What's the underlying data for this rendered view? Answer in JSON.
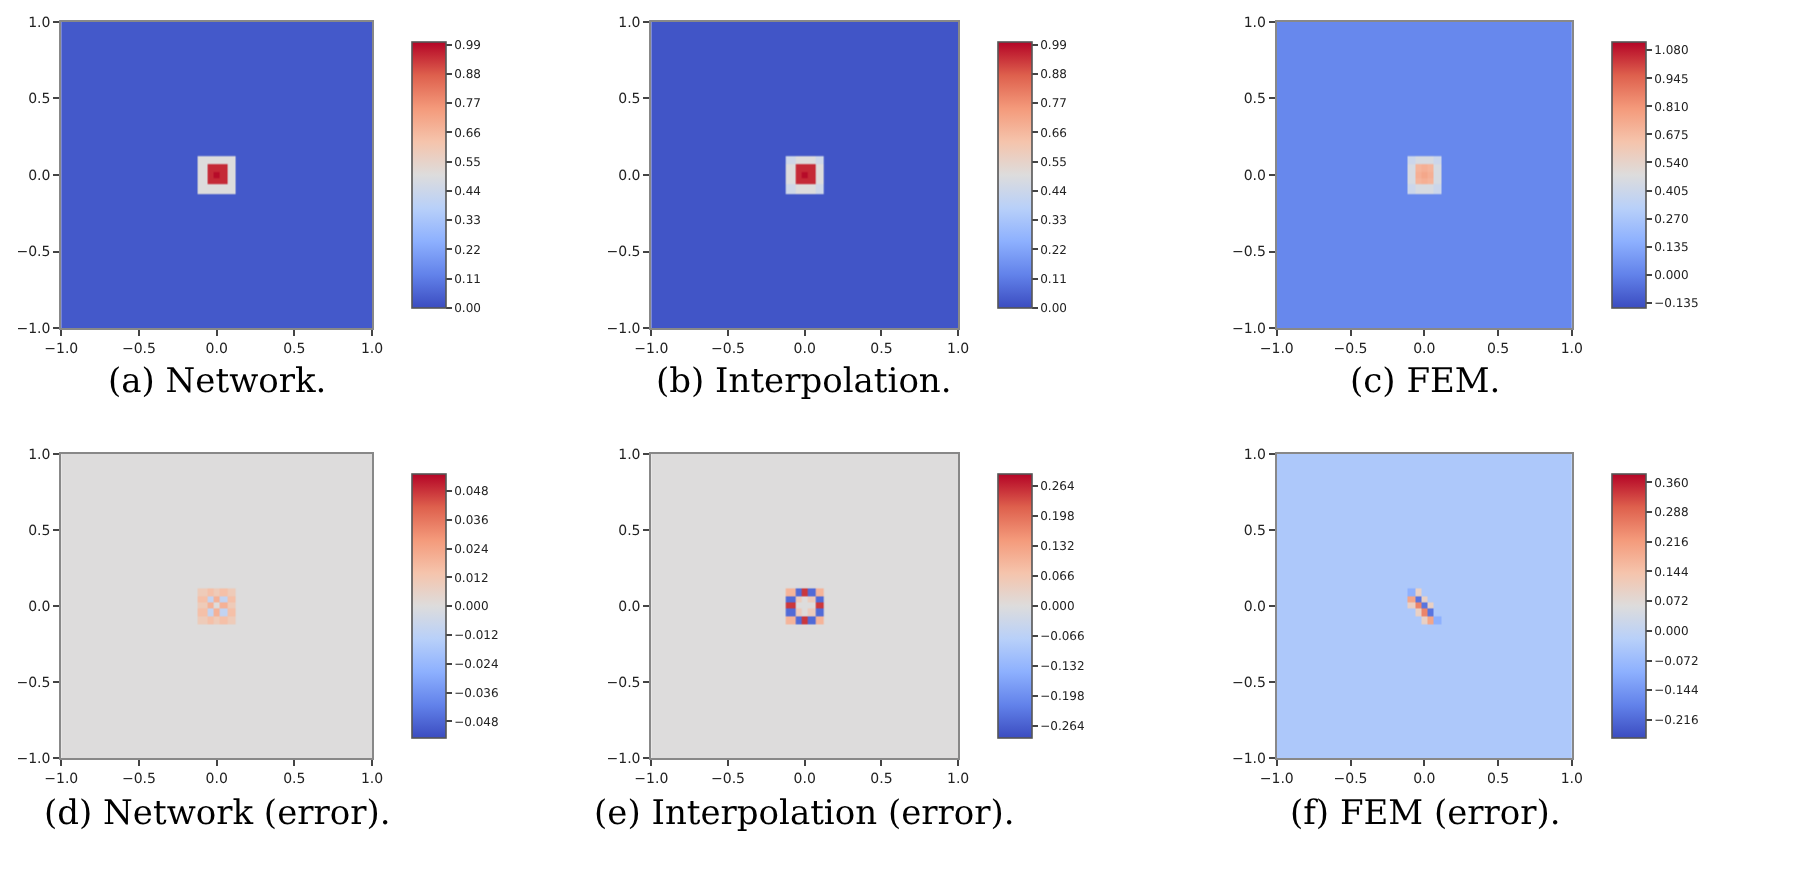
{
  "chart_data": [
    {
      "type": "heatmap",
      "title": "(a) Network.",
      "x": [
        -0.9,
        -0.6,
        -0.3,
        -0.15,
        -0.09,
        -0.04,
        0,
        0.04,
        0.09,
        0.15,
        0.3,
        0.6,
        0.9
      ],
      "y": [
        -0.9,
        -0.6,
        -0.3,
        -0.15,
        -0.09,
        -0.04,
        0,
        0.04,
        0.09,
        0.15,
        0.3,
        0.6,
        0.9
      ],
      "cells": [
        [
          0.03,
          0.03,
          0.03,
          0.03,
          0.03,
          0.03,
          0.03,
          0.03,
          0.03,
          0.03,
          0.03,
          0.03,
          0.03
        ],
        [
          0.03,
          0.03,
          0.03,
          0.03,
          0.03,
          0.03,
          0.03,
          0.03,
          0.03,
          0.03,
          0.03,
          0.03,
          0.03
        ],
        [
          0.03,
          0.03,
          0.03,
          0.03,
          0.03,
          0.03,
          0.03,
          0.03,
          0.03,
          0.03,
          0.03,
          0.03,
          0.03
        ],
        [
          0.03,
          0.03,
          0.03,
          0.03,
          0.03,
          0.03,
          0.03,
          0.03,
          0.03,
          0.03,
          0.03,
          0.03,
          0.03
        ],
        [
          0.03,
          0.03,
          0.03,
          0.03,
          0.5,
          0.5,
          0.5,
          0.5,
          0.5,
          0.03,
          0.03,
          0.03,
          0.03
        ],
        [
          0.03,
          0.03,
          0.03,
          0.03,
          0.5,
          0.95,
          0.95,
          0.95,
          0.5,
          0.03,
          0.03,
          0.03,
          0.03
        ],
        [
          0.03,
          0.03,
          0.03,
          0.03,
          0.5,
          0.95,
          0.99,
          0.95,
          0.5,
          0.03,
          0.03,
          0.03,
          0.03
        ],
        [
          0.03,
          0.03,
          0.03,
          0.03,
          0.5,
          0.95,
          0.95,
          0.95,
          0.5,
          0.03,
          0.03,
          0.03,
          0.03
        ],
        [
          0.03,
          0.03,
          0.03,
          0.03,
          0.5,
          0.5,
          0.5,
          0.5,
          0.5,
          0.03,
          0.03,
          0.03,
          0.03
        ],
        [
          0.03,
          0.03,
          0.03,
          0.03,
          0.03,
          0.03,
          0.03,
          0.03,
          0.03,
          0.03,
          0.03,
          0.03,
          0.03
        ],
        [
          0.03,
          0.03,
          0.03,
          0.03,
          0.03,
          0.03,
          0.03,
          0.03,
          0.03,
          0.03,
          0.03,
          0.03,
          0.03
        ],
        [
          0.03,
          0.03,
          0.03,
          0.03,
          0.03,
          0.03,
          0.03,
          0.03,
          0.03,
          0.03,
          0.03,
          0.03,
          0.03
        ],
        [
          0.03,
          0.03,
          0.03,
          0.03,
          0.03,
          0.03,
          0.03,
          0.03,
          0.03,
          0.03,
          0.03,
          0.03,
          0.03
        ]
      ],
      "clim": [
        0,
        1.0
      ],
      "cticks": [
        {
          "value": 0,
          "label": "0.00"
        },
        {
          "value": 0.11,
          "label": "0.11"
        },
        {
          "value": 0.22,
          "label": "0.22"
        },
        {
          "value": 0.33,
          "label": "0.33"
        },
        {
          "value": 0.44,
          "label": "0.44"
        },
        {
          "value": 0.55,
          "label": "0.55"
        },
        {
          "value": 0.66,
          "label": "0.66"
        },
        {
          "value": 0.77,
          "label": "0.77"
        },
        {
          "value": 0.88,
          "label": "0.88"
        },
        {
          "value": 0.99,
          "label": "0.99"
        }
      ],
      "xlim": [
        -1,
        1
      ],
      "ylim": [
        -1,
        1
      ],
      "xticks": [
        {
          "value": -1,
          "label": "−1.0"
        },
        {
          "value": -0.5,
          "label": "−0.5"
        },
        {
          "value": 0,
          "label": "0.0"
        },
        {
          "value": 0.5,
          "label": "0.5"
        },
        {
          "value": 1,
          "label": "1.0"
        }
      ],
      "yticks": [
        {
          "value": -1,
          "label": "−1.0"
        },
        {
          "value": -0.5,
          "label": "−0.5"
        },
        {
          "value": 0,
          "label": "0.0"
        },
        {
          "value": 0.5,
          "label": "0.5"
        },
        {
          "value": 1,
          "label": "1.0"
        }
      ]
    },
    {
      "type": "heatmap",
      "title": "(b) Interpolation.",
      "x": [
        -0.9,
        -0.6,
        -0.3,
        -0.15,
        -0.09,
        -0.04,
        0,
        0.04,
        0.09,
        0.15,
        0.3,
        0.6,
        0.9
      ],
      "y": [
        -0.9,
        -0.6,
        -0.3,
        -0.15,
        -0.09,
        -0.04,
        0,
        0.04,
        0.09,
        0.15,
        0.3,
        0.6,
        0.9
      ],
      "cells": [
        [
          0.02,
          0.02,
          0.02,
          0.02,
          0.02,
          0.02,
          0.02,
          0.02,
          0.02,
          0.02,
          0.02,
          0.02,
          0.02
        ],
        [
          0.02,
          0.02,
          0.02,
          0.02,
          0.02,
          0.02,
          0.02,
          0.02,
          0.02,
          0.02,
          0.02,
          0.02,
          0.02
        ],
        [
          0.02,
          0.02,
          0.02,
          0.02,
          0.02,
          0.02,
          0.02,
          0.02,
          0.02,
          0.02,
          0.02,
          0.02,
          0.02
        ],
        [
          0.02,
          0.02,
          0.02,
          0.02,
          0.02,
          0.02,
          0.02,
          0.02,
          0.02,
          0.02,
          0.02,
          0.02,
          0.02
        ],
        [
          0.02,
          0.02,
          0.02,
          0.02,
          0.45,
          0.5,
          0.5,
          0.5,
          0.45,
          0.02,
          0.02,
          0.02,
          0.02
        ],
        [
          0.02,
          0.02,
          0.02,
          0.02,
          0.5,
          0.95,
          0.95,
          0.95,
          0.5,
          0.02,
          0.02,
          0.02,
          0.02
        ],
        [
          0.02,
          0.02,
          0.02,
          0.02,
          0.5,
          0.95,
          0.99,
          0.95,
          0.5,
          0.02,
          0.02,
          0.02,
          0.02
        ],
        [
          0.02,
          0.02,
          0.02,
          0.02,
          0.5,
          0.95,
          0.95,
          0.95,
          0.5,
          0.02,
          0.02,
          0.02,
          0.02
        ],
        [
          0.02,
          0.02,
          0.02,
          0.02,
          0.45,
          0.5,
          0.5,
          0.5,
          0.45,
          0.02,
          0.02,
          0.02,
          0.02
        ],
        [
          0.02,
          0.02,
          0.02,
          0.02,
          0.02,
          0.02,
          0.02,
          0.02,
          0.02,
          0.02,
          0.02,
          0.02,
          0.02
        ],
        [
          0.02,
          0.02,
          0.02,
          0.02,
          0.02,
          0.02,
          0.02,
          0.02,
          0.02,
          0.02,
          0.02,
          0.02,
          0.02
        ],
        [
          0.02,
          0.02,
          0.02,
          0.02,
          0.02,
          0.02,
          0.02,
          0.02,
          0.02,
          0.02,
          0.02,
          0.02,
          0.02
        ],
        [
          0.02,
          0.02,
          0.02,
          0.02,
          0.02,
          0.02,
          0.02,
          0.02,
          0.02,
          0.02,
          0.02,
          0.02,
          0.02
        ]
      ],
      "clim": [
        0,
        1.0
      ],
      "cticks": [
        {
          "value": 0,
          "label": "0.00"
        },
        {
          "value": 0.11,
          "label": "0.11"
        },
        {
          "value": 0.22,
          "label": "0.22"
        },
        {
          "value": 0.33,
          "label": "0.33"
        },
        {
          "value": 0.44,
          "label": "0.44"
        },
        {
          "value": 0.55,
          "label": "0.55"
        },
        {
          "value": 0.66,
          "label": "0.66"
        },
        {
          "value": 0.77,
          "label": "0.77"
        },
        {
          "value": 0.88,
          "label": "0.88"
        },
        {
          "value": 0.99,
          "label": "0.99"
        }
      ],
      "xlim": [
        -1,
        1
      ],
      "ylim": [
        -1,
        1
      ],
      "xticks": [
        {
          "value": -1,
          "label": "−1.0"
        },
        {
          "value": -0.5,
          "label": "−0.5"
        },
        {
          "value": 0,
          "label": "0.0"
        },
        {
          "value": 0.5,
          "label": "0.5"
        },
        {
          "value": 1,
          "label": "1.0"
        }
      ],
      "yticks": [
        {
          "value": -1,
          "label": "−1.0"
        },
        {
          "value": -0.5,
          "label": "−0.5"
        },
        {
          "value": 0,
          "label": "0.0"
        },
        {
          "value": 0.5,
          "label": "0.5"
        },
        {
          "value": 1,
          "label": "1.0"
        }
      ]
    },
    {
      "type": "heatmap",
      "title": "(c) FEM.",
      "x": [
        -0.9,
        -0.6,
        -0.3,
        -0.15,
        -0.09,
        -0.04,
        0,
        0.04,
        0.09,
        0.15,
        0.3,
        0.6,
        0.9
      ],
      "y": [
        -0.9,
        -0.6,
        -0.3,
        -0.15,
        -0.09,
        -0.04,
        0,
        0.04,
        0.09,
        0.15,
        0.3,
        0.6,
        0.9
      ],
      "cells": [
        [
          0.02,
          0.02,
          0.02,
          0.02,
          0.02,
          0.02,
          0.02,
          0.02,
          0.02,
          0.02,
          0.02,
          0.02,
          0.02
        ],
        [
          0.02,
          0.02,
          0.02,
          0.02,
          0.02,
          0.02,
          0.02,
          0.02,
          0.02,
          0.02,
          0.02,
          0.02,
          0.02
        ],
        [
          0.02,
          0.02,
          0.02,
          0.02,
          0.02,
          0.02,
          0.02,
          0.02,
          0.02,
          0.02,
          0.02,
          0.02,
          0.02
        ],
        [
          0.02,
          0.02,
          0.02,
          0.02,
          0.02,
          0.02,
          0.02,
          0.02,
          0.02,
          0.02,
          0.02,
          0.02,
          0.02
        ],
        [
          0.02,
          0.02,
          0.02,
          0.02,
          0.4,
          0.45,
          0.45,
          0.45,
          0.4,
          0.02,
          0.02,
          0.02,
          0.02
        ],
        [
          0.02,
          0.02,
          0.02,
          0.02,
          0.45,
          0.7,
          0.72,
          0.7,
          0.45,
          0.02,
          0.02,
          0.02,
          0.02
        ],
        [
          0.02,
          0.02,
          0.02,
          0.02,
          0.45,
          0.72,
          0.75,
          0.72,
          0.45,
          0.02,
          0.02,
          0.02,
          0.02
        ],
        [
          0.02,
          0.02,
          0.02,
          0.02,
          0.45,
          0.7,
          0.72,
          0.7,
          0.45,
          0.02,
          0.02,
          0.02,
          0.02
        ],
        [
          0.02,
          0.02,
          0.02,
          0.02,
          0.4,
          0.45,
          0.45,
          0.45,
          0.4,
          0.02,
          0.02,
          0.02,
          0.02
        ],
        [
          0.02,
          0.02,
          0.02,
          0.02,
          0.02,
          0.02,
          0.02,
          0.02,
          0.02,
          0.02,
          0.02,
          0.02,
          0.02
        ],
        [
          0.02,
          0.02,
          0.02,
          0.02,
          0.02,
          0.02,
          0.02,
          0.02,
          0.02,
          0.02,
          0.02,
          0.02,
          0.02
        ],
        [
          0.02,
          0.02,
          0.02,
          0.02,
          0.02,
          0.02,
          0.02,
          0.02,
          0.02,
          0.02,
          0.02,
          0.02,
          0.02
        ],
        [
          0.02,
          0.02,
          0.02,
          0.02,
          0.02,
          0.02,
          0.02,
          0.02,
          0.02,
          0.02,
          0.02,
          0.02,
          0.02
        ]
      ],
      "clim": [
        -0.16,
        1.12
      ],
      "cticks": [
        {
          "value": -0.135,
          "label": "−0.135"
        },
        {
          "value": 0,
          "label": "0.000"
        },
        {
          "value": 0.135,
          "label": "0.135"
        },
        {
          "value": 0.27,
          "label": "0.270"
        },
        {
          "value": 0.405,
          "label": "0.405"
        },
        {
          "value": 0.54,
          "label": "0.540"
        },
        {
          "value": 0.675,
          "label": "0.675"
        },
        {
          "value": 0.81,
          "label": "0.810"
        },
        {
          "value": 0.945,
          "label": "0.945"
        },
        {
          "value": 1.08,
          "label": "1.080"
        }
      ],
      "xlim": [
        -1,
        1
      ],
      "ylim": [
        -1,
        1
      ],
      "xticks": [
        {
          "value": -1,
          "label": "−1.0"
        },
        {
          "value": -0.5,
          "label": "−0.5"
        },
        {
          "value": 0,
          "label": "0.0"
        },
        {
          "value": 0.5,
          "label": "0.5"
        },
        {
          "value": 1,
          "label": "1.0"
        }
      ],
      "yticks": [
        {
          "value": -1,
          "label": "−1.0"
        },
        {
          "value": -0.5,
          "label": "−0.5"
        },
        {
          "value": 0,
          "label": "0.0"
        },
        {
          "value": 0.5,
          "label": "0.5"
        },
        {
          "value": 1,
          "label": "1.0"
        }
      ]
    },
    {
      "type": "heatmap",
      "title": "(d) Network (error).",
      "x": [
        -0.9,
        -0.6,
        -0.3,
        -0.15,
        -0.09,
        -0.04,
        0,
        0.04,
        0.09,
        0.15,
        0.3,
        0.6,
        0.9
      ],
      "y": [
        -0.9,
        -0.6,
        -0.3,
        -0.15,
        -0.09,
        -0.04,
        0,
        0.04,
        0.09,
        0.15,
        0.3,
        0.6,
        0.9
      ],
      "cells": [
        [
          0,
          0,
          0,
          0,
          0,
          0,
          0,
          0,
          0,
          0,
          0,
          0,
          0
        ],
        [
          0,
          0,
          0,
          0,
          0,
          0,
          0,
          0,
          0,
          0,
          0,
          0,
          0
        ],
        [
          0,
          0,
          0,
          0,
          0,
          0,
          0,
          0,
          0,
          0,
          0,
          0,
          0
        ],
        [
          0,
          0,
          0,
          0,
          0,
          0,
          0,
          0,
          0,
          0,
          0,
          0,
          0
        ],
        [
          0,
          0,
          0,
          0,
          0.01,
          0.015,
          0.01,
          0.015,
          0.01,
          0,
          0,
          0,
          0
        ],
        [
          0,
          0,
          0,
          0,
          0.015,
          -0.01,
          0.02,
          -0.01,
          0.015,
          0,
          0,
          0,
          0
        ],
        [
          0,
          0,
          0,
          0,
          0.01,
          0.02,
          0,
          0.02,
          0.01,
          0,
          0,
          0,
          0
        ],
        [
          0,
          0,
          0,
          0,
          0.015,
          -0.01,
          0.02,
          -0.01,
          0.015,
          0,
          0,
          0,
          0
        ],
        [
          0,
          0,
          0,
          0,
          0.01,
          0.015,
          0.01,
          0.015,
          0.01,
          0,
          0,
          0,
          0
        ],
        [
          0,
          0,
          0,
          0,
          0,
          0,
          0,
          0,
          0,
          0,
          0,
          0,
          0
        ],
        [
          0,
          0,
          0,
          0,
          0,
          0,
          0,
          0,
          0,
          0,
          0,
          0,
          0
        ],
        [
          0,
          0,
          0,
          0,
          0,
          0,
          0,
          0,
          0,
          0,
          0,
          0,
          0
        ],
        [
          0,
          0,
          0,
          0,
          0,
          0,
          0,
          0,
          0,
          0,
          0,
          0,
          0
        ]
      ],
      "clim": [
        -0.055,
        0.055
      ],
      "cticks": [
        {
          "value": -0.048,
          "label": "−0.048"
        },
        {
          "value": -0.036,
          "label": "−0.036"
        },
        {
          "value": -0.024,
          "label": "−0.024"
        },
        {
          "value": -0.012,
          "label": "−0.012"
        },
        {
          "value": 0,
          "label": "0.000"
        },
        {
          "value": 0.012,
          "label": "0.012"
        },
        {
          "value": 0.024,
          "label": "0.024"
        },
        {
          "value": 0.036,
          "label": "0.036"
        },
        {
          "value": 0.048,
          "label": "0.048"
        }
      ],
      "xlim": [
        -1,
        1
      ],
      "ylim": [
        -1,
        1
      ],
      "xticks": [
        {
          "value": -1,
          "label": "−1.0"
        },
        {
          "value": -0.5,
          "label": "−0.5"
        },
        {
          "value": 0,
          "label": "0.0"
        },
        {
          "value": 0.5,
          "label": "0.5"
        },
        {
          "value": 1,
          "label": "1.0"
        }
      ],
      "yticks": [
        {
          "value": -1,
          "label": "−1.0"
        },
        {
          "value": -0.5,
          "label": "−0.5"
        },
        {
          "value": 0,
          "label": "0.0"
        },
        {
          "value": 0.5,
          "label": "0.5"
        },
        {
          "value": 1,
          "label": "1.0"
        }
      ]
    },
    {
      "type": "heatmap",
      "title": "(e) Interpolation (error).",
      "x": [
        -0.9,
        -0.6,
        -0.3,
        -0.15,
        -0.09,
        -0.04,
        0,
        0.04,
        0.09,
        0.15,
        0.3,
        0.6,
        0.9
      ],
      "y": [
        -0.9,
        -0.6,
        -0.3,
        -0.15,
        -0.09,
        -0.04,
        0,
        0.04,
        0.09,
        0.15,
        0.3,
        0.6,
        0.9
      ],
      "cells": [
        [
          0,
          0,
          0,
          0,
          0,
          0,
          0,
          0,
          0,
          0,
          0,
          0,
          0
        ],
        [
          0,
          0,
          0,
          0,
          0,
          0,
          0,
          0,
          0,
          0,
          0,
          0,
          0
        ],
        [
          0,
          0,
          0,
          0,
          0,
          0,
          0,
          0,
          0,
          0,
          0,
          0,
          0
        ],
        [
          0,
          0,
          0,
          0,
          0,
          0,
          0,
          0,
          0,
          0,
          0,
          0,
          0
        ],
        [
          0,
          0,
          0,
          0,
          0.1,
          -0.25,
          0.25,
          -0.25,
          0.1,
          0,
          0,
          0,
          0
        ],
        [
          0,
          0,
          0,
          0,
          -0.25,
          0.05,
          0,
          0.05,
          -0.25,
          0,
          0,
          0,
          0
        ],
        [
          0,
          0,
          0,
          0,
          0.25,
          0,
          0,
          0,
          0.25,
          0,
          0,
          0,
          0
        ],
        [
          0,
          0,
          0,
          0,
          -0.25,
          0.05,
          0,
          0.05,
          -0.25,
          0,
          0,
          0,
          0
        ],
        [
          0,
          0,
          0,
          0,
          0.1,
          -0.25,
          0.25,
          -0.25,
          0.1,
          0,
          0,
          0,
          0
        ],
        [
          0,
          0,
          0,
          0,
          0,
          0,
          0,
          0,
          0,
          0,
          0,
          0,
          0
        ],
        [
          0,
          0,
          0,
          0,
          0,
          0,
          0,
          0,
          0,
          0,
          0,
          0,
          0
        ],
        [
          0,
          0,
          0,
          0,
          0,
          0,
          0,
          0,
          0,
          0,
          0,
          0,
          0
        ],
        [
          0,
          0,
          0,
          0,
          0,
          0,
          0,
          0,
          0,
          0,
          0,
          0,
          0
        ]
      ],
      "clim": [
        -0.29,
        0.29
      ],
      "cticks": [
        {
          "value": -0.264,
          "label": "−0.264"
        },
        {
          "value": -0.198,
          "label": "−0.198"
        },
        {
          "value": -0.132,
          "label": "−0.132"
        },
        {
          "value": -0.066,
          "label": "−0.066"
        },
        {
          "value": 0,
          "label": "0.000"
        },
        {
          "value": 0.066,
          "label": "0.066"
        },
        {
          "value": 0.132,
          "label": "0.132"
        },
        {
          "value": 0.198,
          "label": "0.198"
        },
        {
          "value": 0.264,
          "label": "0.264"
        }
      ],
      "xlim": [
        -1,
        1
      ],
      "ylim": [
        -1,
        1
      ],
      "xticks": [
        {
          "value": -1,
          "label": "−1.0"
        },
        {
          "value": -0.5,
          "label": "−0.5"
        },
        {
          "value": 0,
          "label": "0.0"
        },
        {
          "value": 0.5,
          "label": "0.5"
        },
        {
          "value": 1,
          "label": "1.0"
        }
      ],
      "yticks": [
        {
          "value": -1,
          "label": "−1.0"
        },
        {
          "value": -0.5,
          "label": "−0.5"
        },
        {
          "value": 0,
          "label": "0.0"
        },
        {
          "value": 0.5,
          "label": "0.5"
        },
        {
          "value": 1,
          "label": "1.0"
        }
      ]
    },
    {
      "type": "heatmap",
      "title": "(f) FEM (error).",
      "x": [
        -0.9,
        -0.6,
        -0.3,
        -0.15,
        -0.09,
        -0.04,
        0,
        0.04,
        0.09,
        0.15,
        0.3,
        0.6,
        0.9
      ],
      "y": [
        -0.9,
        -0.6,
        -0.3,
        -0.15,
        -0.09,
        -0.04,
        0,
        0.04,
        0.09,
        0.15,
        0.3,
        0.6,
        0.9
      ],
      "cells": [
        [
          -0.04,
          -0.04,
          -0.04,
          -0.04,
          -0.04,
          -0.04,
          -0.04,
          -0.04,
          -0.04,
          -0.04,
          -0.04,
          -0.04,
          -0.04
        ],
        [
          -0.04,
          -0.04,
          -0.04,
          -0.04,
          -0.04,
          -0.04,
          -0.04,
          -0.04,
          -0.04,
          -0.04,
          -0.04,
          -0.04,
          -0.04
        ],
        [
          -0.04,
          -0.04,
          -0.04,
          -0.04,
          -0.04,
          -0.04,
          -0.04,
          -0.04,
          -0.04,
          -0.04,
          -0.04,
          -0.04,
          -0.04
        ],
        [
          -0.04,
          -0.04,
          -0.04,
          -0.04,
          -0.04,
          -0.04,
          -0.04,
          -0.04,
          -0.04,
          -0.04,
          -0.04,
          -0.04,
          -0.04
        ],
        [
          -0.04,
          -0.04,
          -0.04,
          -0.04,
          -0.04,
          -0.04,
          0.1,
          0.2,
          -0.1,
          -0.04,
          -0.04,
          -0.04,
          -0.04
        ],
        [
          -0.04,
          -0.04,
          -0.04,
          -0.04,
          -0.04,
          0.1,
          0.25,
          -0.2,
          -0.04,
          -0.04,
          -0.04,
          -0.04,
          -0.04
        ],
        [
          -0.04,
          -0.04,
          -0.04,
          -0.04,
          0.1,
          0.25,
          -0.2,
          0.1,
          -0.04,
          -0.04,
          -0.04,
          -0.04,
          -0.04
        ],
        [
          -0.04,
          -0.04,
          -0.04,
          -0.04,
          0.2,
          -0.2,
          0.1,
          -0.04,
          -0.04,
          -0.04,
          -0.04,
          -0.04,
          -0.04
        ],
        [
          -0.04,
          -0.04,
          -0.04,
          -0.04,
          -0.1,
          0.1,
          -0.04,
          -0.04,
          -0.04,
          -0.04,
          -0.04,
          -0.04,
          -0.04
        ],
        [
          -0.04,
          -0.04,
          -0.04,
          -0.04,
          -0.04,
          -0.04,
          -0.04,
          -0.04,
          -0.04,
          -0.04,
          -0.04,
          -0.04,
          -0.04
        ],
        [
          -0.04,
          -0.04,
          -0.04,
          -0.04,
          -0.04,
          -0.04,
          -0.04,
          -0.04,
          -0.04,
          -0.04,
          -0.04,
          -0.04,
          -0.04
        ],
        [
          -0.04,
          -0.04,
          -0.04,
          -0.04,
          -0.04,
          -0.04,
          -0.04,
          -0.04,
          -0.04,
          -0.04,
          -0.04,
          -0.04,
          -0.04
        ],
        [
          -0.04,
          -0.04,
          -0.04,
          -0.04,
          -0.04,
          -0.04,
          -0.04,
          -0.04,
          -0.04,
          -0.04,
          -0.04,
          -0.04,
          -0.04
        ]
      ],
      "clim": [
        -0.26,
        0.38
      ],
      "cticks": [
        {
          "value": -0.216,
          "label": "−0.216"
        },
        {
          "value": -0.144,
          "label": "−0.144"
        },
        {
          "value": -0.072,
          "label": "−0.072"
        },
        {
          "value": 0,
          "label": "0.000"
        },
        {
          "value": 0.072,
          "label": "0.072"
        },
        {
          "value": 0.144,
          "label": "0.144"
        },
        {
          "value": 0.216,
          "label": "0.216"
        },
        {
          "value": 0.288,
          "label": "0.288"
        },
        {
          "value": 0.36,
          "label": "0.360"
        }
      ],
      "xlim": [
        -1,
        1
      ],
      "ylim": [
        -1,
        1
      ],
      "xticks": [
        {
          "value": -1,
          "label": "−1.0"
        },
        {
          "value": -0.5,
          "label": "−0.5"
        },
        {
          "value": 0,
          "label": "0.0"
        },
        {
          "value": 0.5,
          "label": "0.5"
        },
        {
          "value": 1,
          "label": "1.0"
        }
      ],
      "yticks": [
        {
          "value": -1,
          "label": "−1.0"
        },
        {
          "value": -0.5,
          "label": "−0.5"
        },
        {
          "value": 0,
          "label": "0.0"
        },
        {
          "value": 0.5,
          "label": "0.5"
        },
        {
          "value": 1,
          "label": "1.0"
        }
      ]
    }
  ]
}
